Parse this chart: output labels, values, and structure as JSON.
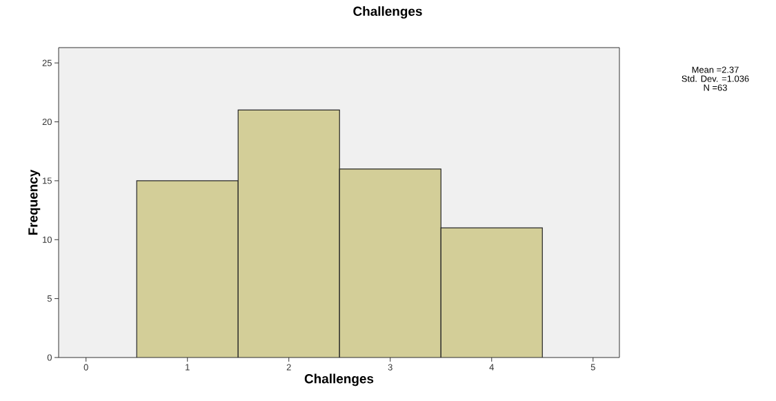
{
  "chart_data": {
    "type": "histogram",
    "title": "Challenges",
    "xlabel": "Challenges",
    "ylabel": "Frequency",
    "bins": [
      0.5,
      1.5,
      2.5,
      3.5,
      4.5
    ],
    "values": [
      15,
      21,
      16,
      11
    ],
    "color": "#d3ce98",
    "xlim": [
      -0.27,
      5.26
    ],
    "ylim": [
      0,
      26.3
    ],
    "xticks": [
      0,
      1,
      2,
      3,
      4,
      5
    ],
    "yticks": [
      0,
      5,
      10,
      15,
      20,
      25
    ],
    "annotations": [
      "Mean =2.37",
      "Std. Dev. =1.036",
      "N =63"
    ]
  }
}
